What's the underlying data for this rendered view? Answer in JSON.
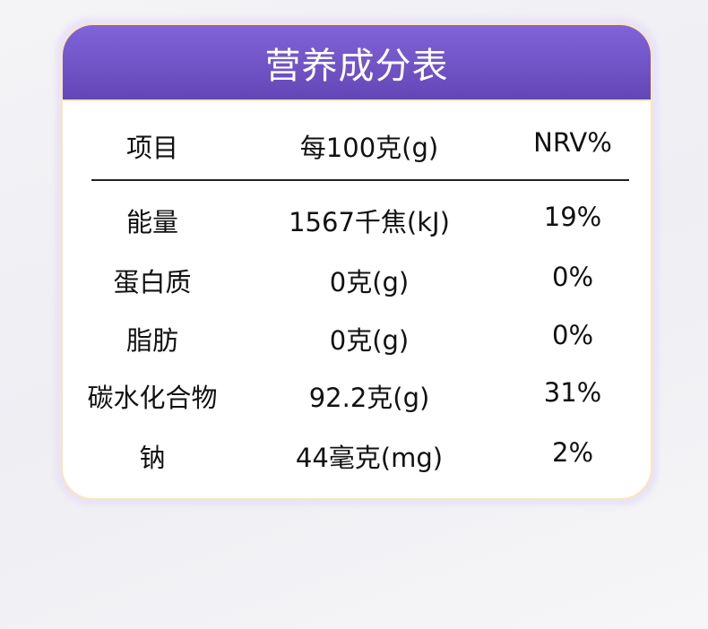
{
  "title": "营养成分表",
  "columns": [
    "项目",
    "每100克(g)",
    "NRV%"
  ],
  "rows": [
    [
      "能量",
      "1567千焦(kJ)",
      "19%"
    ],
    [
      "蛋白质",
      "0克(g)",
      "0%"
    ],
    [
      "脂肪",
      "0克(g)",
      "0%"
    ],
    [
      "碳水化合物",
      "92.2克(g)",
      "31%"
    ],
    [
      "钠",
      "44毫克(mg)",
      "2%"
    ]
  ],
  "colors": {
    "header": "#7258c8",
    "border": "#fbe6b8"
  }
}
